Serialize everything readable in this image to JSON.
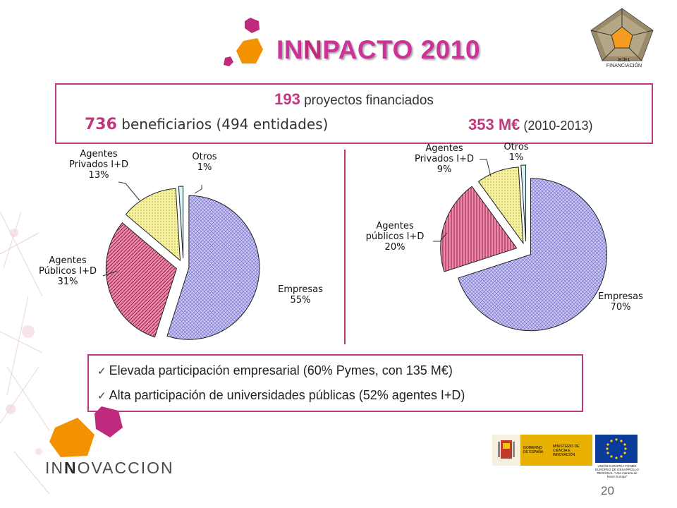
{
  "slide": {
    "title_pre": "IN",
    "title_nn": "N",
    "title_post": "PACTO 2010",
    "badge_line1": "EJE1",
    "badge_line2": "FINANCIACIÓN",
    "page_number": "20"
  },
  "info": {
    "projects_num": "193",
    "projects_text": " proyectos financiados",
    "beneficiaries_num": "736",
    "beneficiaries_text": " beneficiarios (494 entidades)",
    "budget_num": "353 M€",
    "budget_text": " (2010-2013)"
  },
  "bullets": [
    "Elevada participación empresarial (60% Pymes, con 135 M€)",
    "Alta participación de universidades públicas (52% agentes I+D)"
  ],
  "logo": {
    "pre": "IN",
    "nn": "N",
    "post": "OVACCION"
  },
  "gov": {
    "line1": "GOBIERNO DE ESPAÑA",
    "line2": "MINISTERIO DE CIENCIA E INNOVACIÓN",
    "eu_line": "UNIÓN EUROPEA FONDO EUROPEO DE DESARROLLO REGIONAL \"Una manera de hacer Europa\""
  },
  "colors": {
    "accent": "#c0397f",
    "empresas": "#c9c6f3",
    "publicos": "#f08aa9",
    "privados": "#f7f2a0",
    "otros": "#d8f3f7"
  },
  "chart_data": [
    {
      "type": "pie",
      "slices": [
        {
          "label_lines": [
            "Empresas",
            "55%"
          ],
          "value": 55
        },
        {
          "label_lines": [
            "Agentes",
            "Públicos I+D",
            "31%"
          ],
          "value": 31
        },
        {
          "label_lines": [
            "Agentes",
            "Privados I+D",
            "13%"
          ],
          "value": 13
        },
        {
          "label_lines": [
            "Otros",
            "1%"
          ],
          "value": 1
        }
      ]
    },
    {
      "type": "pie",
      "slices": [
        {
          "label_lines": [
            "Empresas",
            "70%"
          ],
          "value": 70
        },
        {
          "label_lines": [
            "Agentes",
            "públicos I+D",
            "20%"
          ],
          "value": 20
        },
        {
          "label_lines": [
            "Agentes",
            "Privados I+D",
            "9%"
          ],
          "value": 9
        },
        {
          "label_lines": [
            "Otros",
            "1%"
          ],
          "value": 1
        }
      ]
    }
  ]
}
